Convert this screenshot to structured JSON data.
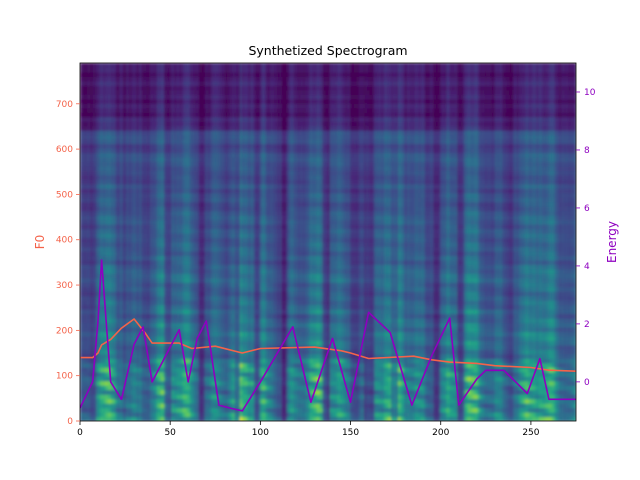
{
  "chart_data": {
    "type": "line",
    "title": "Synthetized Spectrogram",
    "background": "spectrogram heatmap (viridis colormap), mel bins 0-79 over frames 0-275",
    "xlim": [
      0,
      275
    ],
    "x_ticks": [
      "0",
      "50",
      "100",
      "150",
      "200",
      "250"
    ],
    "left_axis": {
      "label": "F0",
      "color": "#f4634a",
      "ylim": [
        0,
        790
      ],
      "ticks": [
        "0",
        "100",
        "200",
        "300",
        "400",
        "500",
        "600",
        "700"
      ]
    },
    "right_axis": {
      "label": "Energy",
      "color": "#8e00c0",
      "ylim": [
        -1.35,
        11.0
      ],
      "ticks": [
        "0",
        "2",
        "4",
        "6",
        "8",
        "10"
      ]
    },
    "series": [
      {
        "name": "F0",
        "axis": "left",
        "color": "#f4634a",
        "x": [
          0,
          7,
          10,
          12,
          17,
          23,
          30,
          36,
          40,
          55,
          62,
          75,
          90,
          100,
          130,
          145,
          150,
          160,
          185,
          195,
          205,
          220,
          230,
          250,
          260,
          275
        ],
        "y": [
          140,
          140,
          150,
          168,
          180,
          205,
          225,
          195,
          172,
          172,
          160,
          165,
          150,
          160,
          163,
          155,
          150,
          138,
          143,
          135,
          130,
          127,
          122,
          118,
          112,
          110
        ]
      },
      {
        "name": "Energy",
        "axis": "right",
        "color": "#8e00c0",
        "x": [
          0,
          7,
          10,
          12,
          17,
          23,
          30,
          35,
          40,
          55,
          60,
          65,
          70,
          77,
          83,
          90,
          100,
          118,
          128,
          140,
          150,
          160,
          172,
          184,
          195,
          205,
          210,
          220,
          225,
          235,
          248,
          255,
          260,
          275
        ],
        "y": [
          -0.9,
          0.0,
          2.1,
          4.2,
          0.0,
          -0.6,
          1.3,
          1.9,
          0.0,
          1.8,
          0.0,
          1.5,
          2.1,
          -0.8,
          -0.9,
          -1.0,
          0.0,
          1.9,
          -0.7,
          1.5,
          -0.7,
          2.4,
          1.7,
          -0.8,
          0.9,
          2.2,
          -0.8,
          0.1,
          0.4,
          0.4,
          -0.4,
          0.8,
          -0.6,
          -0.6
        ]
      }
    ]
  }
}
